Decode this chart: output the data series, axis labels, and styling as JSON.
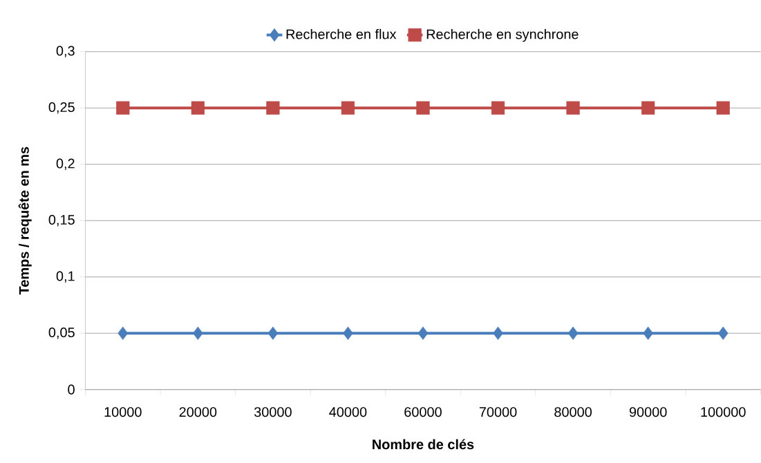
{
  "chart_data": {
    "type": "line",
    "xlabel": "Nombre de clés",
    "ylabel": "Temps / requête en ms",
    "categories": [
      "10000",
      "20000",
      "30000",
      "40000",
      "60000",
      "70000",
      "80000",
      "90000",
      "100000"
    ],
    "series": [
      {
        "name": "Recherche en flux",
        "color": "#4a7ebb",
        "marker": "diamond",
        "values": [
          0.05,
          0.05,
          0.05,
          0.05,
          0.05,
          0.05,
          0.05,
          0.05,
          0.05
        ]
      },
      {
        "name": "Recherche en synchrone",
        "color": "#be4b48",
        "marker": "square",
        "values": [
          0.25,
          0.25,
          0.25,
          0.25,
          0.25,
          0.25,
          0.25,
          0.25,
          0.25
        ]
      }
    ],
    "ylim": [
      0,
      0.3
    ],
    "yticks": [
      0,
      {
        "value": 0.05,
        "label": "0,05"
      },
      {
        "value": 0.1,
        "label": "0,1"
      },
      {
        "value": 0.15,
        "label": "0,15"
      },
      {
        "value": 0.2,
        "label": "0,2"
      },
      {
        "value": 0.25,
        "label": "0,25"
      },
      {
        "value": 0.3,
        "label": "0,3"
      }
    ],
    "grid": "y",
    "legend": "top",
    "line_style": "solid"
  }
}
